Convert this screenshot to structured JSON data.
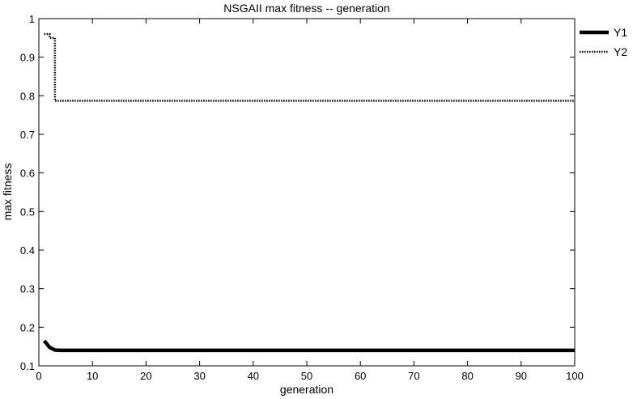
{
  "chart_data": {
    "type": "line",
    "title": "NSGAII max fitness -- generation",
    "xlabel": "generation",
    "ylabel": "max fitness",
    "xlim": [
      0,
      100
    ],
    "ylim": [
      0.1,
      1.0
    ],
    "xticks": [
      0,
      10,
      20,
      30,
      40,
      50,
      60,
      70,
      80,
      90,
      100
    ],
    "yticks": [
      0.1,
      0.2,
      0.3,
      0.4,
      0.5,
      0.6,
      0.7,
      0.8,
      0.9,
      1.0
    ],
    "ytick_labels": [
      "0.1",
      "0.2",
      "0.3",
      "0.4",
      "0.5",
      "0.6",
      "0.7",
      "0.8",
      "0.9",
      "1"
    ],
    "grid": false,
    "legend_position": "top-right",
    "series": [
      {
        "name": "Y1",
        "style": "solid-thick",
        "color": "#000000",
        "x": [
          1,
          2,
          3,
          4,
          100
        ],
        "y": [
          0.165,
          0.148,
          0.141,
          0.14,
          0.14
        ]
      },
      {
        "name": "Y2",
        "style": "dotted",
        "color": "#000000",
        "x": [
          1,
          2,
          2,
          3,
          3,
          100
        ],
        "y": [
          0.96,
          0.96,
          0.95,
          0.95,
          0.787,
          0.787
        ]
      }
    ]
  }
}
